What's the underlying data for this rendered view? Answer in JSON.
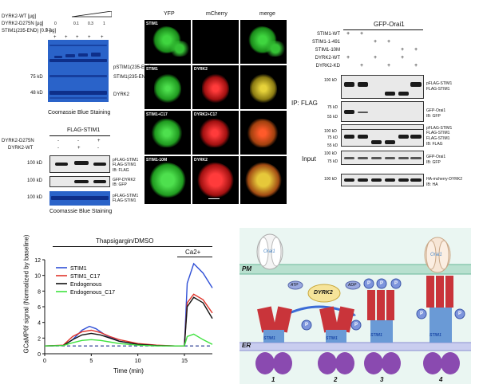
{
  "panelA": {
    "row_labels": [
      "DYRK2-WT [µg]",
      "DYRK2-D275N [µg]",
      "STIM1(235-END) [0.3 µg]"
    ],
    "wt_values": [
      "0",
      "0.1",
      "0.3",
      "1"
    ],
    "d275n_value": "0.3",
    "plus": "+",
    "marker_75": "75 kD",
    "marker_48": "48 kD",
    "band_labels": [
      "pSTIM1(235-END)",
      "STIM1(235-END)",
      "DYRK2"
    ],
    "caption": "Coomassie Blue Staining"
  },
  "panelB": {
    "header": "FLAG-STIM1",
    "row_labels": [
      "DYRK2-D275N",
      "DYRK2-WT"
    ],
    "d275n_signs": [
      "-",
      "-",
      "+"
    ],
    "wt_signs": [
      "-",
      "+",
      "-"
    ],
    "marker": "100 kD",
    "right_labels_1": [
      "pFLAG-STIM1",
      "FLAG-STIM1",
      "IB: FLAG"
    ],
    "right_labels_2": [
      "GFP-DYRK2",
      "IB: GFP"
    ],
    "right_labels_3": [
      "pFLAG-STIM1",
      "FLAG-STIM1"
    ],
    "caption": "Coomassie Blue Staining"
  },
  "panelC": {
    "headers": [
      "YFP",
      "mCherry",
      "merge"
    ],
    "rows": [
      {
        "yfp": "STIM1",
        "mcherry": ""
      },
      {
        "yfp": "STIM1",
        "mcherry": "DYRK2"
      },
      {
        "yfp": "STIM1+C17",
        "mcherry": "DYRK2+C17"
      },
      {
        "yfp": "STIM1-10M",
        "mcherry": "DYRK2"
      }
    ]
  },
  "panelD": {
    "header": "GFP-Orai1",
    "row_labels": [
      "STIM1-WT",
      "STIM1-1-491",
      "STIM1-10M",
      "DYRK2-WT",
      "DYRK2-KD"
    ],
    "signs": [
      [
        "+",
        "+",
        "",
        "",
        "",
        ""
      ],
      [
        "",
        "",
        "+",
        "+",
        "",
        ""
      ],
      [
        "",
        "",
        "",
        "",
        "+",
        "+"
      ],
      [
        "+",
        "",
        "+",
        "",
        "+",
        ""
      ],
      [
        "",
        "+",
        "",
        "+",
        "",
        "+"
      ]
    ],
    "ip_label": "IP: FLAG",
    "input_label": "Input",
    "markers": [
      "100 kD",
      "75 kD",
      "55 kD",
      "100 kD",
      "75 kD",
      "55 kD",
      "100 kD",
      "75 kD",
      "100 kD"
    ],
    "blot_labels": [
      [
        "pFLAG-STIM1",
        "FLAG-STIM1"
      ],
      [
        "GFP-Orai1",
        "IB: GFP"
      ],
      [
        "FLAG-STIM1",
        "IB: FLAG"
      ],
      [
        "pFLAG-STIM1",
        "FLAG-STIM1"
      ],
      [
        "GFP-Orai1",
        "IB: GFP"
      ],
      [
        "HA-mcherry-DYRK2",
        "IB: HA"
      ]
    ]
  },
  "panelE": {
    "treatment_label": "Thapsigargin/DMSO",
    "ca_label": "Ca2+"
  },
  "chart_data": {
    "type": "line",
    "xlabel": "Time (min)",
    "ylabel": "GCaMP6f signal (Normalized by baseline)",
    "xlim": [
      0,
      18
    ],
    "ylim": [
      0,
      12
    ],
    "xticks": [
      0,
      5,
      10,
      15
    ],
    "yticks": [
      0,
      2,
      4,
      6,
      8,
      10,
      12
    ],
    "legend_position": "top-left",
    "series": [
      {
        "name": "STIM1",
        "color": "#2f4fd6",
        "x": [
          0,
          2,
          3,
          4,
          4.8,
          5.5,
          6.5,
          8,
          10,
          12,
          14,
          15,
          15.3,
          16,
          17,
          18
        ],
        "y": [
          1,
          1.05,
          1.8,
          3.0,
          3.5,
          3.2,
          2.4,
          1.6,
          1.2,
          1.05,
          1,
          1,
          9,
          11.5,
          10.3,
          8.4
        ]
      },
      {
        "name": "STIM1_C17",
        "color": "#e0352b",
        "x": [
          0,
          2,
          3,
          4,
          5,
          6,
          7,
          8,
          10,
          12,
          14,
          15,
          15.3,
          16,
          17,
          18
        ],
        "y": [
          1,
          1.1,
          2.2,
          2.8,
          3.0,
          2.7,
          2.2,
          1.8,
          1.3,
          1.1,
          1,
          1,
          6.5,
          7.6,
          6.9,
          5.2
        ]
      },
      {
        "name": "Endogenous",
        "color": "#111111",
        "x": [
          0,
          2,
          3,
          4,
          5,
          6,
          7,
          8,
          10,
          12,
          14,
          15,
          15.3,
          16,
          17,
          18
        ],
        "y": [
          1,
          1.05,
          1.8,
          2.4,
          2.6,
          2.4,
          2.0,
          1.6,
          1.2,
          1.05,
          1,
          1,
          6.0,
          7.2,
          6.5,
          4.5
        ]
      },
      {
        "name": "Endogenous_C17",
        "color": "#3ee23e",
        "x": [
          0,
          2,
          3,
          4,
          5,
          6,
          7,
          8,
          10,
          12,
          14,
          15,
          15.3,
          16,
          17,
          18
        ],
        "y": [
          1,
          1.05,
          1.4,
          1.7,
          1.8,
          1.7,
          1.5,
          1.3,
          1.1,
          1.0,
          1,
          1,
          2.2,
          2.5,
          1.8,
          1.2
        ]
      }
    ]
  },
  "panelF": {
    "pm_label": "PM",
    "er_label": "ER",
    "orai_label": "Orai1",
    "dyrk_label": "DYRK2",
    "atp_label": "ATP",
    "adp_label": "ADP",
    "p_label": "P",
    "stim_label": "STIM1",
    "step_numbers": [
      "1",
      "2",
      "3",
      "4"
    ]
  }
}
